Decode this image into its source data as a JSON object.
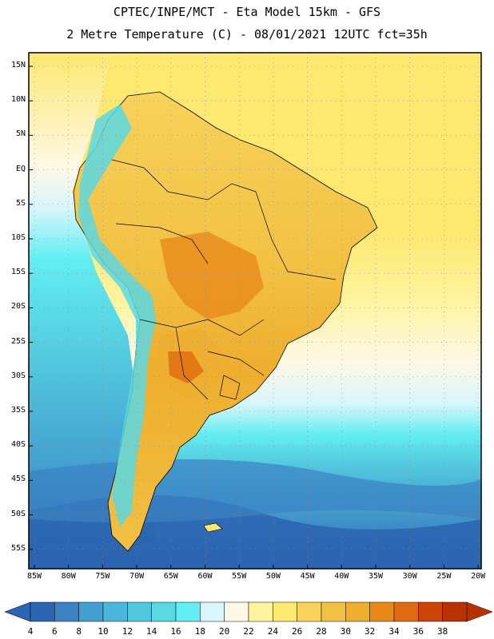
{
  "title": {
    "line1": "CPTEC/INPE/MCT -  Eta Model 15km - GFS",
    "line2": "2 Metre Temperature (C) - 08/01/2021 12UTC fct=35h"
  },
  "lat_labels": [
    "15N",
    "10N",
    "5N",
    "EQ",
    "5S",
    "10S",
    "15S",
    "20S",
    "25S",
    "30S",
    "35S",
    "40S",
    "45S",
    "50S",
    "55S"
  ],
  "lon_labels": [
    "85W",
    "80W",
    "75W",
    "70W",
    "65W",
    "60W",
    "55W",
    "50W",
    "45W",
    "40W",
    "35W",
    "30W",
    "25W",
    "20W"
  ],
  "colorbar": {
    "values": [
      "4",
      "6",
      "8",
      "10",
      "12",
      "14",
      "16",
      "18",
      "20",
      "22",
      "24",
      "26",
      "28",
      "30",
      "32",
      "34",
      "36",
      "38"
    ],
    "colors": [
      "#2b64b0",
      "#3a82c4",
      "#44a0d0",
      "#4ab8dc",
      "#52c8de",
      "#5ad8e4",
      "#62eef2",
      "#d8f6fc",
      "#fff8e6",
      "#fef4a0",
      "#fde870",
      "#f8d25a",
      "#f2c042",
      "#eeae2e",
      "#e88a1a",
      "#e06a10",
      "#cc4406",
      "#b83200"
    ],
    "low_end_color": "#2b64b0",
    "high_end_color": "#b83200"
  },
  "colors": {
    "ocean_north": "#fde870",
    "land_warm": "#f2c042",
    "land_hot": "#e88a1a",
    "ocean_cool": "#52c8de",
    "ocean_cold": "#2b64b0",
    "andes": "#5ad8e4"
  }
}
